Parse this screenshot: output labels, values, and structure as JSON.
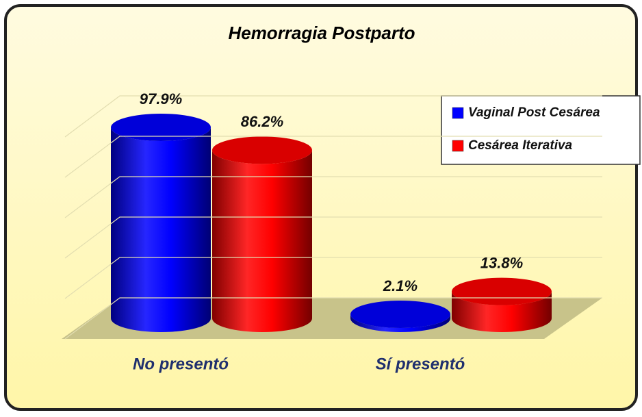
{
  "chart_data": {
    "type": "bar3d",
    "title": "Hemorragia Postparto",
    "categories": [
      "No presentó",
      "Sí presentó"
    ],
    "series": [
      {
        "name": "Vaginal Post Cesárea",
        "color": "#0000ff",
        "values": [
          97.9,
          2.1
        ],
        "value_labels": [
          "97.9%",
          "2.1%"
        ]
      },
      {
        "name": "Cesárea Iterativa",
        "color": "#ff0000",
        "values": [
          86.2,
          13.8
        ],
        "value_labels": [
          "86.2%",
          "13.8%"
        ]
      }
    ],
    "ylim": [
      0,
      100
    ],
    "yticks": [
      0,
      20,
      40,
      60,
      80,
      100
    ],
    "grid": true,
    "legend": "top-right"
  }
}
